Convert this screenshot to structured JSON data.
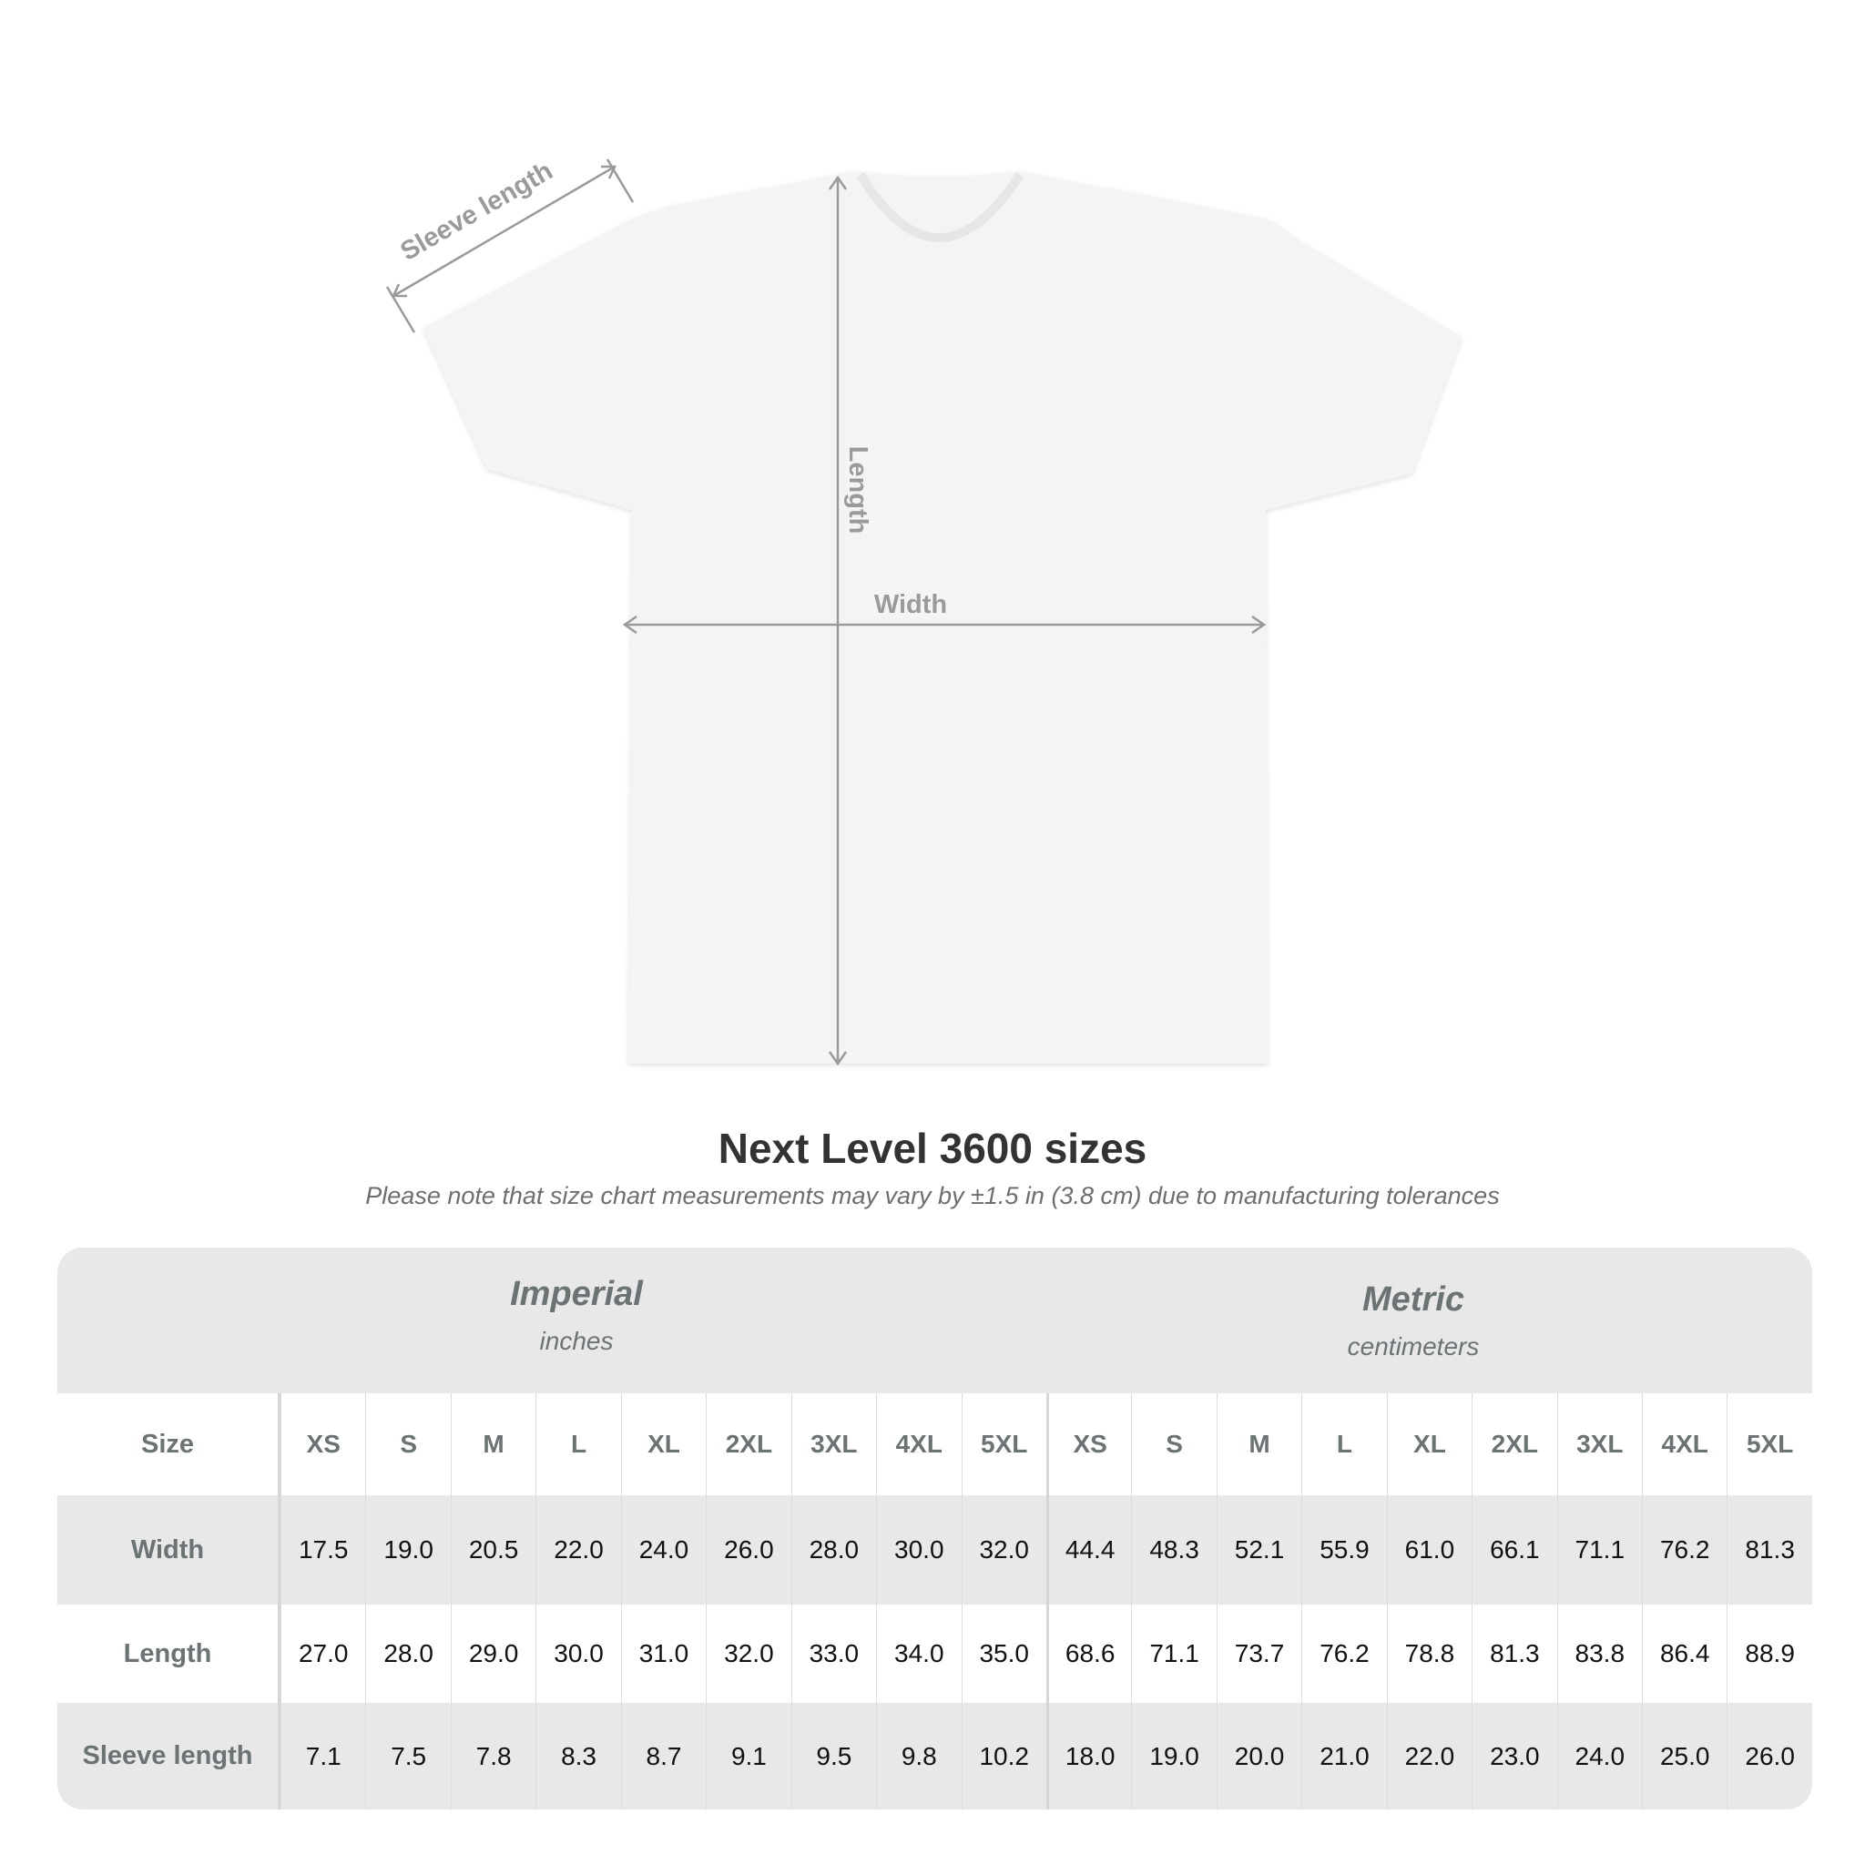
{
  "diagram": {
    "labels": {
      "sleeve": "Sleeve length",
      "length": "Length",
      "width": "Width"
    },
    "line_color": "#9a9a9a",
    "shirt_color": "#f4f4f4"
  },
  "title": "Next Level 3600 sizes",
  "note": "Please note that size chart measurements may vary by ±1.5 in (3.8 cm) due to manufacturing tolerances",
  "systems": [
    {
      "name": "Imperial",
      "unit": "inches"
    },
    {
      "name": "Metric",
      "unit": "centimeters"
    }
  ],
  "table": {
    "size_label": "Size",
    "sizes": [
      "XS",
      "S",
      "M",
      "L",
      "XL",
      "2XL",
      "3XL",
      "4XL",
      "5XL",
      "XS",
      "S",
      "M",
      "L",
      "XL",
      "2XL",
      "3XL",
      "4XL",
      "5XL"
    ],
    "rows": [
      {
        "label": "Width",
        "values": [
          "17.5",
          "19.0",
          "20.5",
          "22.0",
          "24.0",
          "26.0",
          "28.0",
          "30.0",
          "32.0",
          "44.4",
          "48.3",
          "52.1",
          "55.9",
          "61.0",
          "66.1",
          "71.1",
          "76.2",
          "81.3"
        ]
      },
      {
        "label": "Length",
        "values": [
          "27.0",
          "28.0",
          "29.0",
          "30.0",
          "31.0",
          "32.0",
          "33.0",
          "34.0",
          "35.0",
          "68.6",
          "71.1",
          "73.7",
          "76.2",
          "78.8",
          "81.3",
          "83.8",
          "86.4",
          "88.9"
        ]
      },
      {
        "label": "Sleeve length",
        "values": [
          "7.1",
          "7.5",
          "7.8",
          "8.3",
          "8.7",
          "9.1",
          "9.5",
          "9.8",
          "10.2",
          "18.0",
          "19.0",
          "20.0",
          "21.0",
          "22.0",
          "23.0",
          "24.0",
          "25.0",
          "26.0"
        ]
      }
    ]
  }
}
